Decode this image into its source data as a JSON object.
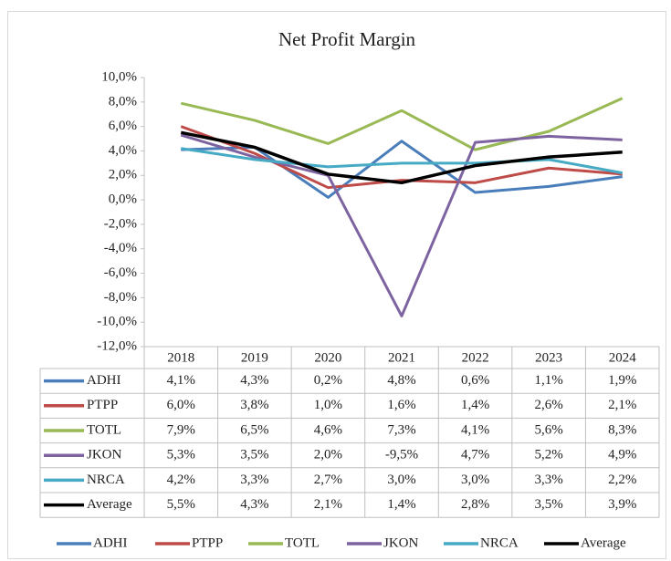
{
  "chart_data": {
    "type": "line",
    "title": "Net Profit Margin",
    "categories": [
      "2018",
      "2019",
      "2020",
      "2021",
      "2022",
      "2023",
      "2024"
    ],
    "series": [
      {
        "name": "ADHI",
        "color": "#4a7ebb",
        "values": [
          4.1,
          4.3,
          0.2,
          4.8,
          0.6,
          1.1,
          1.9
        ],
        "value_labels": [
          "4,1%",
          "4,3%",
          "0,2%",
          "4,8%",
          "0,6%",
          "1,1%",
          "1,9%"
        ]
      },
      {
        "name": "PTPP",
        "color": "#be4b48",
        "values": [
          6.0,
          3.8,
          1.0,
          1.6,
          1.4,
          2.6,
          2.1
        ],
        "value_labels": [
          "6,0%",
          "3,8%",
          "1,0%",
          "1,6%",
          "1,4%",
          "2,6%",
          "2,1%"
        ]
      },
      {
        "name": "TOTL",
        "color": "#98b954",
        "values": [
          7.9,
          6.5,
          4.6,
          7.3,
          4.1,
          5.6,
          8.3
        ],
        "value_labels": [
          "7,9%",
          "6,5%",
          "4,6%",
          "7,3%",
          "4,1%",
          "5,6%",
          "8,3%"
        ]
      },
      {
        "name": "JKON",
        "color": "#7e63a1",
        "values": [
          5.3,
          3.5,
          2.0,
          -9.5,
          4.7,
          5.2,
          4.9
        ],
        "value_labels": [
          "5,3%",
          "3,5%",
          "2,0%",
          "-9,5%",
          "4,7%",
          "5,2%",
          "4,9%"
        ]
      },
      {
        "name": "NRCA",
        "color": "#46aac5",
        "values": [
          4.2,
          3.3,
          2.7,
          3.0,
          3.0,
          3.3,
          2.2
        ],
        "value_labels": [
          "4,2%",
          "3,3%",
          "2,7%",
          "3,0%",
          "3,0%",
          "3,3%",
          "2,2%"
        ]
      },
      {
        "name": "Average",
        "color": "#000000",
        "values": [
          5.5,
          4.3,
          2.1,
          1.4,
          2.8,
          3.5,
          3.9
        ],
        "value_labels": [
          "5,5%",
          "4,3%",
          "2,1%",
          "1,4%",
          "2,8%",
          "3,5%",
          "3,9%"
        ]
      }
    ],
    "ylim": [
      -12,
      10
    ],
    "yticks": [
      {
        "value": -12,
        "label": "-12,0%"
      },
      {
        "value": -10,
        "label": "-10,0%"
      },
      {
        "value": -8,
        "label": "-8,0%"
      },
      {
        "value": -6,
        "label": "-6,0%"
      },
      {
        "value": -4,
        "label": "-4,0%"
      },
      {
        "value": -2,
        "label": "-2,0%"
      },
      {
        "value": 0,
        "label": "0,0%"
      },
      {
        "value": 2,
        "label": "2,0%"
      },
      {
        "value": 4,
        "label": "4,0%"
      },
      {
        "value": 6,
        "label": "6,0%"
      },
      {
        "value": 8,
        "label": "8,0%"
      },
      {
        "value": 10,
        "label": "10,0%"
      }
    ],
    "grid": false,
    "data_table": true,
    "legend": "bottom"
  }
}
